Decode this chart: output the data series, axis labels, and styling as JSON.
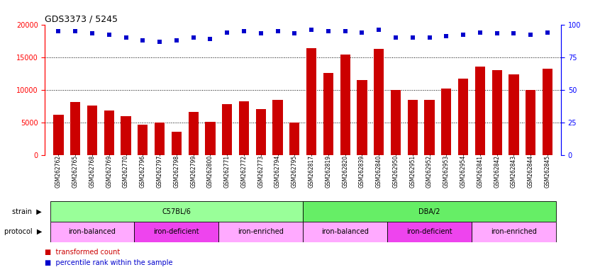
{
  "title": "GDS3373 / 5245",
  "samples": [
    "GSM262762",
    "GSM262765",
    "GSM262768",
    "GSM262769",
    "GSM262770",
    "GSM262796",
    "GSM262797",
    "GSM262798",
    "GSM262799",
    "GSM262800",
    "GSM262771",
    "GSM262772",
    "GSM262773",
    "GSM262794",
    "GSM262795",
    "GSM262817",
    "GSM262819",
    "GSM262820",
    "GSM262839",
    "GSM262840",
    "GSM262950",
    "GSM262951",
    "GSM262952",
    "GSM262953",
    "GSM262954",
    "GSM262841",
    "GSM262842",
    "GSM262843",
    "GSM262844",
    "GSM262845"
  ],
  "bar_values": [
    6200,
    8100,
    7600,
    6800,
    6000,
    4600,
    5000,
    3600,
    6600,
    5100,
    7800,
    8200,
    7000,
    8400,
    5000,
    16400,
    12600,
    15400,
    11500,
    16300,
    10000,
    8400,
    8400,
    10200,
    11700,
    13500,
    13000,
    12400,
    10000,
    13200
  ],
  "percentile_values": [
    95,
    95,
    93,
    92,
    90,
    88,
    87,
    88,
    90,
    89,
    94,
    95,
    93,
    95,
    93,
    96,
    95,
    95,
    94,
    96,
    90,
    90,
    90,
    91,
    92,
    94,
    93,
    93,
    92,
    94
  ],
  "bar_color": "#CC0000",
  "dot_color": "#0000CC",
  "ylim_left": [
    0,
    20000
  ],
  "ylim_right": [
    0,
    100
  ],
  "yticks_left": [
    0,
    5000,
    10000,
    15000,
    20000
  ],
  "yticks_right": [
    0,
    25,
    50,
    75,
    100
  ],
  "strain_groups": [
    {
      "label": "C57BL/6",
      "start": 0,
      "end": 15,
      "color": "#99FF99"
    },
    {
      "label": "DBA/2",
      "start": 15,
      "end": 30,
      "color": "#66EE66"
    }
  ],
  "protocol_groups": [
    {
      "label": "iron-balanced",
      "start": 0,
      "end": 5,
      "color": "#FFAAFF"
    },
    {
      "label": "iron-deficient",
      "start": 5,
      "end": 10,
      "color": "#EE44EE"
    },
    {
      "label": "iron-enriched",
      "start": 10,
      "end": 15,
      "color": "#FFAAFF"
    },
    {
      "label": "iron-balanced",
      "start": 15,
      "end": 20,
      "color": "#FFAAFF"
    },
    {
      "label": "iron-deficient",
      "start": 20,
      "end": 25,
      "color": "#EE44EE"
    },
    {
      "label": "iron-enriched",
      "start": 25,
      "end": 30,
      "color": "#FFAAFF"
    }
  ],
  "legend_items": [
    {
      "label": "transformed count",
      "color": "#CC0000"
    },
    {
      "label": "percentile rank within the sample",
      "color": "#0000CC"
    }
  ],
  "strain_label": "strain",
  "protocol_label": "protocol",
  "background_color": "#FFFFFF",
  "title_fontsize": 9,
  "tick_fontsize": 7,
  "label_fontsize": 7,
  "row_fontsize": 7,
  "legend_fontsize": 7
}
